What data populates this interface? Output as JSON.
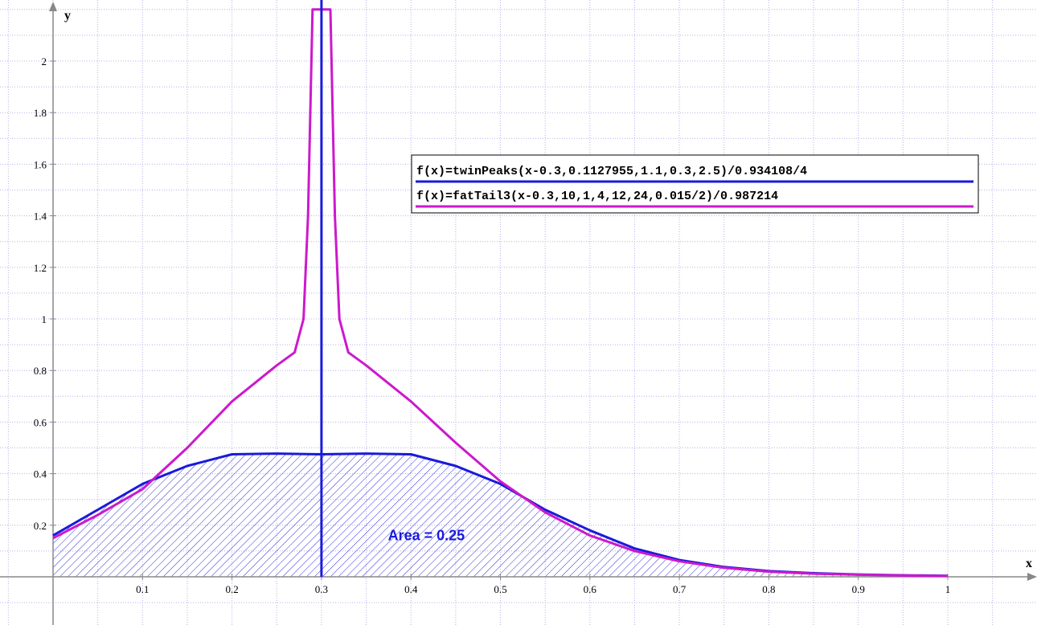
{
  "chart_data": {
    "type": "line",
    "xlabel": "x",
    "ylabel": "y",
    "xlim": [
      -0.06,
      1.06
    ],
    "ylim": [
      -0.17,
      2.2
    ],
    "x_ticks": [
      0.1,
      0.2,
      0.3,
      0.4,
      0.5,
      0.6,
      0.7,
      0.8,
      0.9,
      1
    ],
    "y_ticks": [
      0.2,
      0.4,
      0.6,
      0.8,
      1,
      1.2,
      1.4,
      1.6,
      1.8,
      2
    ],
    "x_tick_labels": [
      "0.1",
      "0.2",
      "0.3",
      "0.4",
      "0.5",
      "0.6",
      "0.7",
      "0.8",
      "0.9",
      "1"
    ],
    "y_tick_labels": [
      "0.2",
      "0.4",
      "0.6",
      "0.8",
      "1",
      "1.2",
      "1.4",
      "1.6",
      "1.8",
      "2"
    ],
    "grid": true,
    "legend_position": "upper-right",
    "series": [
      {
        "name": "f(x)=twinPeaks(x-0.3,0.1127955,1.1,0.3,2.5)/0.934108/4",
        "color": "#1a1adb",
        "x": [
          0,
          0.05,
          0.1,
          0.15,
          0.2,
          0.25,
          0.3,
          0.35,
          0.4,
          0.45,
          0.5,
          0.55,
          0.6,
          0.65,
          0.7,
          0.75,
          0.8,
          0.85,
          0.9,
          0.95,
          1
        ],
        "y": [
          0.16,
          0.26,
          0.36,
          0.43,
          0.475,
          0.478,
          0.475,
          0.478,
          0.475,
          0.43,
          0.36,
          0.26,
          0.18,
          0.11,
          0.065,
          0.038,
          0.022,
          0.014,
          0.009,
          0.006,
          0.004
        ]
      },
      {
        "name": "f(x)=fatTail3(x-0.3,10,1,4,12,24,0.015/2)/0.987214",
        "color": "#cc19cc",
        "x": [
          0,
          0.05,
          0.1,
          0.15,
          0.2,
          0.25,
          0.27,
          0.28,
          0.285,
          0.29,
          0.31,
          0.315,
          0.32,
          0.33,
          0.35,
          0.4,
          0.45,
          0.5,
          0.55,
          0.6,
          0.65,
          0.7,
          0.75,
          0.8,
          0.85,
          0.9,
          0.95,
          1
        ],
        "y": [
          0.15,
          0.24,
          0.34,
          0.5,
          0.68,
          0.82,
          0.87,
          1.0,
          1.4,
          2.2,
          2.2,
          1.4,
          1.0,
          0.87,
          0.82,
          0.68,
          0.52,
          0.37,
          0.25,
          0.16,
          0.1,
          0.06,
          0.035,
          0.02,
          0.012,
          0.008,
          0.005,
          0.003
        ]
      }
    ],
    "vertical_line": {
      "x": 0.3,
      "color": "#1a1adb"
    },
    "shaded_area": {
      "series_index": 0,
      "from_x": 0,
      "to_x": 1
    },
    "annotation": {
      "text": "Area = 0.25",
      "x": 0.43,
      "y": 0.16,
      "color": "#1a1adb"
    }
  }
}
